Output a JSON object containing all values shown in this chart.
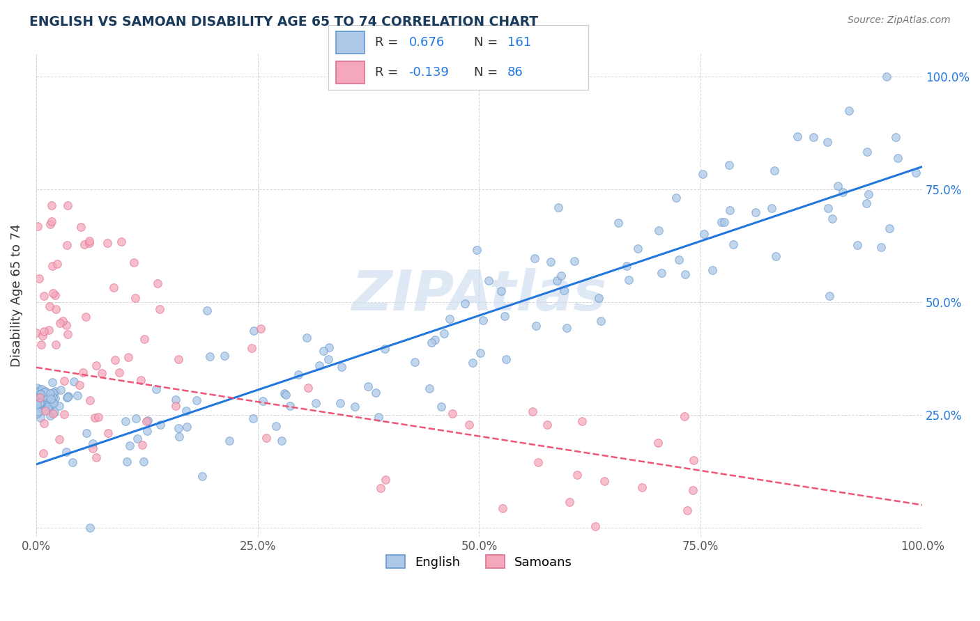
{
  "title": "ENGLISH VS SAMOAN DISABILITY AGE 65 TO 74 CORRELATION CHART",
  "source_text": "Source: ZipAtlas.com",
  "ylabel": "Disability Age 65 to 74",
  "watermark": "ZIPAtlas",
  "xlim": [
    0.0,
    1.0
  ],
  "ylim": [
    -0.02,
    1.05
  ],
  "xtick_labels": [
    "0.0%",
    "25.0%",
    "50.0%",
    "75.0%",
    "100.0%"
  ],
  "xtick_vals": [
    0.0,
    0.25,
    0.5,
    0.75,
    1.0
  ],
  "ytick_vals": [
    0.0,
    0.25,
    0.5,
    0.75,
    1.0
  ],
  "right_ytick_labels": [
    "25.0%",
    "50.0%",
    "75.0%",
    "100.0%"
  ],
  "right_ytick_vals": [
    0.25,
    0.5,
    0.75,
    1.0
  ],
  "english_color": "#adc8e8",
  "samoan_color": "#f5a8bc",
  "english_edge_color": "#6699cc",
  "samoan_edge_color": "#e07090",
  "trend_english_color": "#2277dd",
  "trend_samoan_color": "#ee5577",
  "R_english": 0.676,
  "N_english": 161,
  "R_samoan": -0.139,
  "N_samoan": 86,
  "legend_english": "English",
  "legend_samoan": "Samoans",
  "title_color": "#1a3a5c",
  "background_color": "#ffffff",
  "grid_color": "#bbbbbb",
  "watermark_color": "#c5d8ee",
  "eng_trend_x0": 0.0,
  "eng_trend_y0": 0.14,
  "eng_trend_x1": 1.0,
  "eng_trend_y1": 0.8,
  "sam_trend_x0": 0.0,
  "sam_trend_y0": 0.355,
  "sam_trend_x1": 1.0,
  "sam_trend_y1": 0.05
}
